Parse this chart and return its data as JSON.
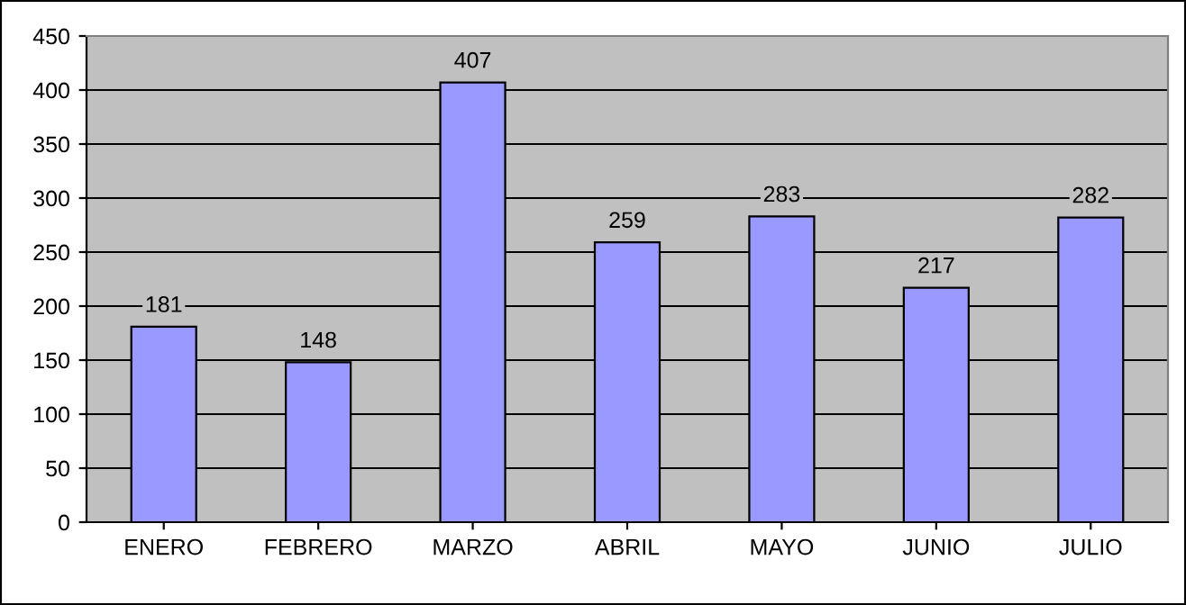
{
  "chart_data": {
    "type": "bar",
    "categories": [
      "ENERO",
      "FEBRERO",
      "MARZO",
      "ABRIL",
      "MAYO",
      "JUNIO",
      "JULIO"
    ],
    "values": [
      181,
      148,
      407,
      259,
      283,
      217,
      282
    ],
    "color": "#9999ff",
    "ylim": [
      0,
      450
    ],
    "yticks": [
      0,
      50,
      100,
      150,
      200,
      250,
      300,
      350,
      400,
      450
    ],
    "grid": "y",
    "data_labels": true
  }
}
